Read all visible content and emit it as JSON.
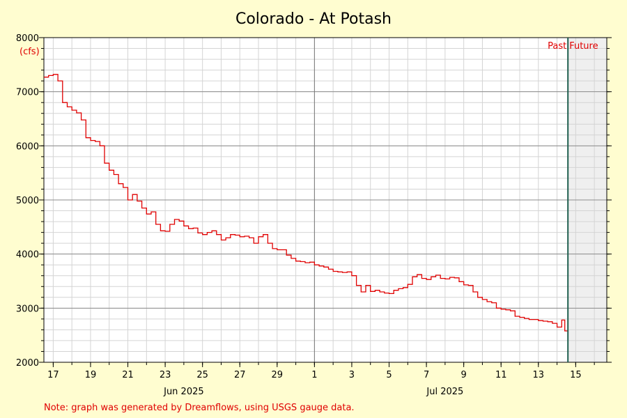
{
  "chart_data": {
    "type": "line",
    "title": "Colorado - At Potash",
    "ylabel": "(cfs)",
    "ylim": [
      2000,
      8000
    ],
    "yticks": [
      2000,
      3000,
      4000,
      5000,
      6000,
      7000,
      8000
    ],
    "x_range": [
      "2025-06-16T12:00",
      "2025-07-16T16:00"
    ],
    "x_tick_labels": [
      {
        "date": "2025-06-17",
        "label": "17"
      },
      {
        "date": "2025-06-19",
        "label": "19"
      },
      {
        "date": "2025-06-21",
        "label": "21"
      },
      {
        "date": "2025-06-23",
        "label": "23"
      },
      {
        "date": "2025-06-25",
        "label": "25"
      },
      {
        "date": "2025-06-27",
        "label": "27"
      },
      {
        "date": "2025-06-29",
        "label": "29"
      },
      {
        "date": "2025-07-01",
        "label": "1"
      },
      {
        "date": "2025-07-03",
        "label": "3"
      },
      {
        "date": "2025-07-05",
        "label": "5"
      },
      {
        "date": "2025-07-07",
        "label": "7"
      },
      {
        "date": "2025-07-09",
        "label": "9"
      },
      {
        "date": "2025-07-11",
        "label": "11"
      },
      {
        "date": "2025-07-13",
        "label": "13"
      },
      {
        "date": "2025-07-15",
        "label": "15"
      }
    ],
    "month_labels": [
      {
        "date": "2025-06-24",
        "label": "Jun 2025"
      },
      {
        "date": "2025-07-08",
        "label": "Jul 2025"
      }
    ],
    "month_boundary": "2025-07-01",
    "now": "2025-07-14T14:00",
    "past_label": "Past",
    "future_label": "Future",
    "grid": true,
    "series": [
      {
        "color": "#e00000",
        "points": [
          [
            "2025-06-16T12:00",
            7270
          ],
          [
            "2025-06-16T18:00",
            7300
          ],
          [
            "2025-06-17T00:00",
            7320
          ],
          [
            "2025-06-17T06:00",
            7200
          ],
          [
            "2025-06-17T12:00",
            6800
          ],
          [
            "2025-06-17T18:00",
            6720
          ],
          [
            "2025-06-18T00:00",
            6660
          ],
          [
            "2025-06-18T06:00",
            6610
          ],
          [
            "2025-06-18T12:00",
            6480
          ],
          [
            "2025-06-18T18:00",
            6150
          ],
          [
            "2025-06-19T00:00",
            6100
          ],
          [
            "2025-06-19T06:00",
            6080
          ],
          [
            "2025-06-19T12:00",
            6000
          ],
          [
            "2025-06-19T18:00",
            5680
          ],
          [
            "2025-06-20T00:00",
            5550
          ],
          [
            "2025-06-20T06:00",
            5470
          ],
          [
            "2025-06-20T12:00",
            5300
          ],
          [
            "2025-06-20T18:00",
            5230
          ],
          [
            "2025-06-21T00:00",
            5000
          ],
          [
            "2025-06-21T06:00",
            5100
          ],
          [
            "2025-06-21T12:00",
            4980
          ],
          [
            "2025-06-21T18:00",
            4850
          ],
          [
            "2025-06-22T00:00",
            4740
          ],
          [
            "2025-06-22T06:00",
            4780
          ],
          [
            "2025-06-22T12:00",
            4550
          ],
          [
            "2025-06-22T18:00",
            4430
          ],
          [
            "2025-06-23T00:00",
            4420
          ],
          [
            "2025-06-23T06:00",
            4550
          ],
          [
            "2025-06-23T12:00",
            4640
          ],
          [
            "2025-06-23T18:00",
            4610
          ],
          [
            "2025-06-24T00:00",
            4520
          ],
          [
            "2025-06-24T06:00",
            4470
          ],
          [
            "2025-06-24T12:00",
            4480
          ],
          [
            "2025-06-24T18:00",
            4390
          ],
          [
            "2025-06-25T00:00",
            4360
          ],
          [
            "2025-06-25T06:00",
            4400
          ],
          [
            "2025-06-25T12:00",
            4430
          ],
          [
            "2025-06-25T18:00",
            4360
          ],
          [
            "2025-06-26T00:00",
            4260
          ],
          [
            "2025-06-26T06:00",
            4300
          ],
          [
            "2025-06-26T12:00",
            4360
          ],
          [
            "2025-06-26T18:00",
            4350
          ],
          [
            "2025-06-27T00:00",
            4320
          ],
          [
            "2025-06-27T06:00",
            4330
          ],
          [
            "2025-06-27T12:00",
            4300
          ],
          [
            "2025-06-27T18:00",
            4200
          ],
          [
            "2025-06-28T00:00",
            4320
          ],
          [
            "2025-06-28T06:00",
            4360
          ],
          [
            "2025-06-28T12:00",
            4200
          ],
          [
            "2025-06-28T18:00",
            4100
          ],
          [
            "2025-06-29T00:00",
            4080
          ],
          [
            "2025-06-29T06:00",
            4080
          ],
          [
            "2025-06-29T12:00",
            3980
          ],
          [
            "2025-06-29T18:00",
            3920
          ],
          [
            "2025-06-30T00:00",
            3870
          ],
          [
            "2025-06-30T06:00",
            3860
          ],
          [
            "2025-06-30T12:00",
            3840
          ],
          [
            "2025-06-30T18:00",
            3850
          ],
          [
            "2025-07-01T00:00",
            3800
          ],
          [
            "2025-07-01T06:00",
            3780
          ],
          [
            "2025-07-01T12:00",
            3760
          ],
          [
            "2025-07-01T18:00",
            3720
          ],
          [
            "2025-07-02T00:00",
            3680
          ],
          [
            "2025-07-02T06:00",
            3670
          ],
          [
            "2025-07-02T12:00",
            3660
          ],
          [
            "2025-07-02T18:00",
            3670
          ],
          [
            "2025-07-03T00:00",
            3600
          ],
          [
            "2025-07-03T06:00",
            3420
          ],
          [
            "2025-07-03T12:00",
            3300
          ],
          [
            "2025-07-03T18:00",
            3420
          ],
          [
            "2025-07-04T00:00",
            3310
          ],
          [
            "2025-07-04T06:00",
            3330
          ],
          [
            "2025-07-04T12:00",
            3300
          ],
          [
            "2025-07-04T18:00",
            3280
          ],
          [
            "2025-07-05T00:00",
            3270
          ],
          [
            "2025-07-05T06:00",
            3330
          ],
          [
            "2025-07-05T12:00",
            3360
          ],
          [
            "2025-07-05T18:00",
            3380
          ],
          [
            "2025-07-06T00:00",
            3440
          ],
          [
            "2025-07-06T06:00",
            3580
          ],
          [
            "2025-07-06T12:00",
            3620
          ],
          [
            "2025-07-06T18:00",
            3550
          ],
          [
            "2025-07-07T00:00",
            3530
          ],
          [
            "2025-07-07T06:00",
            3580
          ],
          [
            "2025-07-07T12:00",
            3610
          ],
          [
            "2025-07-07T18:00",
            3550
          ],
          [
            "2025-07-08T00:00",
            3540
          ],
          [
            "2025-07-08T06:00",
            3570
          ],
          [
            "2025-07-08T12:00",
            3560
          ],
          [
            "2025-07-08T18:00",
            3490
          ],
          [
            "2025-07-09T00:00",
            3430
          ],
          [
            "2025-07-09T06:00",
            3420
          ],
          [
            "2025-07-09T12:00",
            3300
          ],
          [
            "2025-07-09T18:00",
            3200
          ],
          [
            "2025-07-10T00:00",
            3160
          ],
          [
            "2025-07-10T06:00",
            3120
          ],
          [
            "2025-07-10T12:00",
            3100
          ],
          [
            "2025-07-10T18:00",
            3000
          ],
          [
            "2025-07-11T00:00",
            2980
          ],
          [
            "2025-07-11T06:00",
            2970
          ],
          [
            "2025-07-11T12:00",
            2950
          ],
          [
            "2025-07-11T18:00",
            2850
          ],
          [
            "2025-07-12T00:00",
            2830
          ],
          [
            "2025-07-12T06:00",
            2810
          ],
          [
            "2025-07-12T12:00",
            2790
          ],
          [
            "2025-07-12T18:00",
            2790
          ],
          [
            "2025-07-13T00:00",
            2770
          ],
          [
            "2025-07-13T06:00",
            2760
          ],
          [
            "2025-07-13T12:00",
            2750
          ],
          [
            "2025-07-13T18:00",
            2720
          ],
          [
            "2025-07-14T00:00",
            2650
          ],
          [
            "2025-07-14T06:00",
            2780
          ],
          [
            "2025-07-14T10:00",
            2580
          ],
          [
            "2025-07-14T14:00",
            2680
          ]
        ]
      }
    ]
  },
  "note": "Note: graph was generated by Dreamflows, using USGS gauge data."
}
